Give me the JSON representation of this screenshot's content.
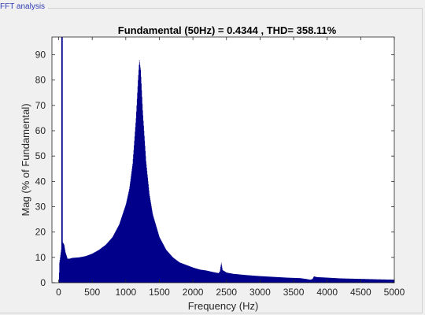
{
  "panel": {
    "title": "FFT analysis"
  },
  "colors": {
    "bar": "#00008b",
    "axes": "#262626",
    "background": "#ffffff",
    "panel": "#f0f0f0"
  },
  "chart_data": {
    "type": "bar",
    "title": "Fundamental (50Hz) = 0.4344 , THD= 358.11%",
    "xlabel": "Frequency (Hz)",
    "ylabel": "Mag (% of Fundamental)",
    "xlim": [
      -100,
      5000
    ],
    "ylim": [
      0,
      97
    ],
    "xticks": [
      0,
      500,
      1000,
      1500,
      2000,
      2500,
      3000,
      3500,
      4000,
      4500,
      5000
    ],
    "yticks": [
      0,
      10,
      20,
      30,
      40,
      50,
      60,
      70,
      80,
      90
    ],
    "grid": false,
    "bar_width_hz": 5,
    "fundamental": {
      "x": 50,
      "y": 100
    },
    "spectrum_envelope": [
      [
        0,
        0
      ],
      [
        10,
        8
      ],
      [
        25,
        11
      ],
      [
        40,
        14
      ],
      [
        60,
        16
      ],
      [
        80,
        15
      ],
      [
        100,
        12
      ],
      [
        130,
        9.5
      ],
      [
        160,
        9.5
      ],
      [
        200,
        9.8
      ],
      [
        300,
        10
      ],
      [
        400,
        10.5
      ],
      [
        500,
        11.5
      ],
      [
        600,
        13
      ],
      [
        700,
        15
      ],
      [
        800,
        18
      ],
      [
        900,
        23
      ],
      [
        1000,
        31
      ],
      [
        1050,
        37
      ],
      [
        1100,
        47
      ],
      [
        1150,
        65
      ],
      [
        1180,
        80
      ],
      [
        1200,
        88
      ],
      [
        1220,
        84
      ],
      [
        1250,
        68
      ],
      [
        1300,
        48
      ],
      [
        1350,
        35
      ],
      [
        1400,
        27
      ],
      [
        1500,
        18
      ],
      [
        1600,
        13
      ],
      [
        1700,
        10
      ],
      [
        1800,
        8
      ],
      [
        1900,
        7
      ],
      [
        2000,
        6
      ],
      [
        2100,
        5.2
      ],
      [
        2200,
        4.8
      ],
      [
        2300,
        4.2
      ],
      [
        2380,
        3.8
      ],
      [
        2400,
        4.5
      ],
      [
        2420,
        8
      ],
      [
        2440,
        5
      ],
      [
        2500,
        4
      ],
      [
        2600,
        3.5
      ],
      [
        2800,
        3
      ],
      [
        3000,
        2.6
      ],
      [
        3200,
        2.3
      ],
      [
        3400,
        2
      ],
      [
        3600,
        1.8
      ],
      [
        3750,
        1.2
      ],
      [
        3780,
        1.5
      ],
      [
        3800,
        2.5
      ],
      [
        3850,
        2.2
      ],
      [
        4000,
        2
      ],
      [
        4200,
        1.7
      ],
      [
        4500,
        1.5
      ],
      [
        4800,
        1.3
      ],
      [
        5000,
        1.2
      ]
    ]
  }
}
